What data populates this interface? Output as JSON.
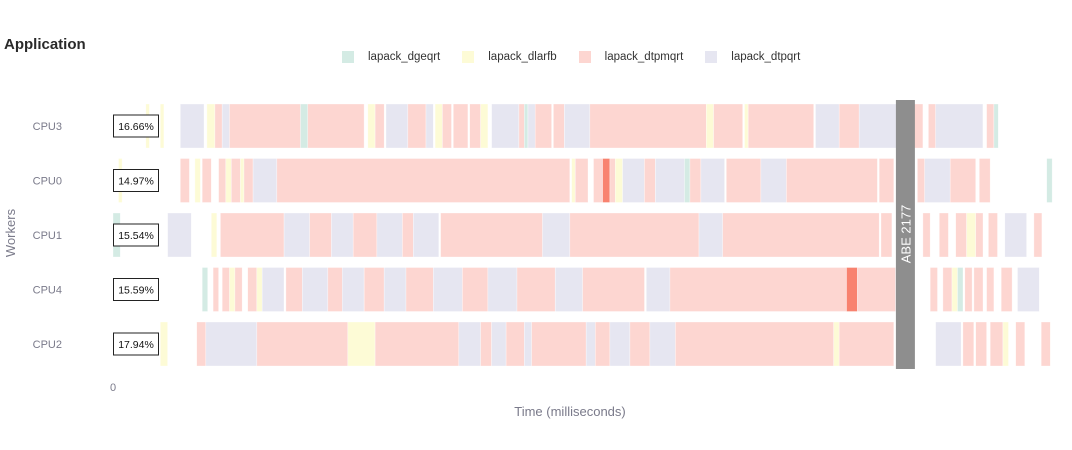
{
  "title": "Application",
  "colors": {
    "lapack_dgeqrt": "#d4ebe4",
    "lapack_dlarfb": "#fdfbd6",
    "lapack_dtpmqrt": "#fdd6d1",
    "lapack_dtpqrt": "#e6e6f1",
    "highlight": "#f8826f",
    "marker": "#8e8e8e"
  },
  "legend": [
    {
      "key": "lapack_dgeqrt",
      "label": "lapack_dgeqrt"
    },
    {
      "key": "lapack_dlarfb",
      "label": "lapack_dlarfb"
    },
    {
      "key": "lapack_dtpmqrt",
      "label": "lapack_dtpmqrt"
    },
    {
      "key": "lapack_dtpqrt",
      "label": "lapack_dtpqrt"
    }
  ],
  "chart_data": {
    "type": "gantt",
    "title": "Application",
    "xlabel": "Time (milliseconds)",
    "ylabel": "Workers",
    "x_tick_labels": [
      "0"
    ],
    "xlim": [
      0,
      2500
    ],
    "marker": {
      "label": "ABE 2177",
      "x": 2177
    },
    "workers": [
      {
        "name": "CPU3",
        "utilization": "16.66%",
        "tasks": [
          {
            "type": "lapack_dlarfb",
            "start": 90,
            "end": 100
          },
          {
            "type": "lapack_dlarfb",
            "start": 130,
            "end": 140
          },
          {
            "type": "lapack_dtpqrt",
            "start": 185,
            "end": 250
          },
          {
            "type": "lapack_dlarfb",
            "start": 258,
            "end": 280
          },
          {
            "type": "lapack_dtpmqrt",
            "start": 280,
            "end": 300
          },
          {
            "type": "lapack_dtpqrt",
            "start": 300,
            "end": 320
          },
          {
            "type": "lapack_dtpmqrt",
            "start": 320,
            "end": 515
          },
          {
            "type": "lapack_dgeqrt",
            "start": 515,
            "end": 535
          },
          {
            "type": "lapack_dtpmqrt",
            "start": 535,
            "end": 690
          },
          {
            "type": "lapack_dlarfb",
            "start": 700,
            "end": 720
          },
          {
            "type": "lapack_dtpmqrt",
            "start": 720,
            "end": 745
          },
          {
            "type": "lapack_dtpqrt",
            "start": 750,
            "end": 810
          },
          {
            "type": "lapack_dtpmqrt",
            "start": 810,
            "end": 860
          },
          {
            "type": "lapack_dtpqrt",
            "start": 860,
            "end": 880
          },
          {
            "type": "lapack_dlarfb",
            "start": 885,
            "end": 905
          },
          {
            "type": "lapack_dtpmqrt",
            "start": 905,
            "end": 930
          },
          {
            "type": "lapack_dtpmqrt",
            "start": 935,
            "end": 975
          },
          {
            "type": "lapack_dtpmqrt",
            "start": 980,
            "end": 1010
          },
          {
            "type": "lapack_dlarfb",
            "start": 1010,
            "end": 1030
          },
          {
            "type": "lapack_dtpqrt",
            "start": 1040,
            "end": 1115
          },
          {
            "type": "lapack_dtpmqrt",
            "start": 1115,
            "end": 1130
          },
          {
            "type": "lapack_dgeqrt",
            "start": 1130,
            "end": 1140
          },
          {
            "type": "lapack_dtpqrt",
            "start": 1140,
            "end": 1160
          },
          {
            "type": "lapack_dtpmqrt",
            "start": 1160,
            "end": 1205
          },
          {
            "type": "lapack_dtpmqrt",
            "start": 1210,
            "end": 1240
          },
          {
            "type": "lapack_dtpqrt",
            "start": 1240,
            "end": 1310
          },
          {
            "type": "lapack_dtpmqrt",
            "start": 1310,
            "end": 1630
          },
          {
            "type": "lapack_dlarfb",
            "start": 1630,
            "end": 1650
          },
          {
            "type": "lapack_dtpmqrt",
            "start": 1650,
            "end": 1730
          },
          {
            "type": "lapack_dlarfb",
            "start": 1735,
            "end": 1745
          },
          {
            "type": "lapack_dtpmqrt",
            "start": 1745,
            "end": 1925
          },
          {
            "type": "lapack_dtpqrt",
            "start": 1930,
            "end": 1995
          },
          {
            "type": "lapack_dtpmqrt",
            "start": 1995,
            "end": 2050
          },
          {
            "type": "lapack_dtpqrt",
            "start": 2050,
            "end": 2160
          },
          {
            "type": "lapack_dtpmqrt",
            "start": 2200,
            "end": 2225
          },
          {
            "type": "lapack_dtpmqrt",
            "start": 2240,
            "end": 2260
          },
          {
            "type": "lapack_dtpqrt",
            "start": 2260,
            "end": 2390
          },
          {
            "type": "lapack_dtpmqrt",
            "start": 2400,
            "end": 2420
          },
          {
            "type": "lapack_dgeqrt",
            "start": 2420,
            "end": 2432
          }
        ]
      },
      {
        "name": "CPU0",
        "utilization": "14.97%",
        "tasks": [
          {
            "type": "lapack_dlarfb",
            "start": 15,
            "end": 25
          },
          {
            "type": "lapack_dtpmqrt",
            "start": 185,
            "end": 210
          },
          {
            "type": "lapack_dlarfb",
            "start": 225,
            "end": 240
          },
          {
            "type": "lapack_dtpmqrt",
            "start": 245,
            "end": 270
          },
          {
            "type": "lapack_dtpmqrt",
            "start": 290,
            "end": 310
          },
          {
            "type": "lapack_dlarfb",
            "start": 310,
            "end": 325
          },
          {
            "type": "lapack_dtpmqrt",
            "start": 325,
            "end": 350
          },
          {
            "type": "lapack_dlarfb",
            "start": 350,
            "end": 360
          },
          {
            "type": "lapack_dtpmqrt",
            "start": 360,
            "end": 385
          },
          {
            "type": "lapack_dtpqrt",
            "start": 385,
            "end": 450
          },
          {
            "type": "lapack_dtpmqrt",
            "start": 450,
            "end": 1255
          },
          {
            "type": "lapack_dlarfb",
            "start": 1260,
            "end": 1270
          },
          {
            "type": "lapack_dtpmqrt",
            "start": 1270,
            "end": 1305
          },
          {
            "type": "lapack_dtpmqrt",
            "start": 1320,
            "end": 1345
          },
          {
            "type": "lapack_dtpmqrt",
            "start": 1345,
            "end": 1365,
            "highlight": true
          },
          {
            "type": "lapack_dtpmqrt",
            "start": 1365,
            "end": 1380
          },
          {
            "type": "lapack_dlarfb",
            "start": 1380,
            "end": 1400
          },
          {
            "type": "lapack_dtpqrt",
            "start": 1400,
            "end": 1460
          },
          {
            "type": "lapack_dtpmqrt",
            "start": 1460,
            "end": 1490
          },
          {
            "type": "lapack_dtpqrt",
            "start": 1490,
            "end": 1570
          },
          {
            "type": "lapack_dgeqrt",
            "start": 1570,
            "end": 1585
          },
          {
            "type": "lapack_dtpmqrt",
            "start": 1585,
            "end": 1615
          },
          {
            "type": "lapack_dtpqrt",
            "start": 1615,
            "end": 1680
          },
          {
            "type": "lapack_dtpmqrt",
            "start": 1685,
            "end": 1780
          },
          {
            "type": "lapack_dtpqrt",
            "start": 1780,
            "end": 1850
          },
          {
            "type": "lapack_dtpmqrt",
            "start": 1850,
            "end": 2100
          },
          {
            "type": "lapack_dtpmqrt",
            "start": 2105,
            "end": 2145
          },
          {
            "type": "lapack_dtpmqrt",
            "start": 2210,
            "end": 2230
          },
          {
            "type": "lapack_dtpqrt",
            "start": 2230,
            "end": 2300
          },
          {
            "type": "lapack_dtpmqrt",
            "start": 2300,
            "end": 2370
          },
          {
            "type": "lapack_dtpmqrt",
            "start": 2380,
            "end": 2410
          },
          {
            "type": "lapack_dgeqrt",
            "start": 2565,
            "end": 2580
          }
        ]
      },
      {
        "name": "CPU1",
        "utilization": "15.54%",
        "tasks": [
          {
            "type": "lapack_dgeqrt",
            "start": 0,
            "end": 20
          },
          {
            "type": "lapack_dtpqrt",
            "start": 150,
            "end": 215
          },
          {
            "type": "lapack_dlarfb",
            "start": 270,
            "end": 285
          },
          {
            "type": "lapack_dtpmqrt",
            "start": 295,
            "end": 470
          },
          {
            "type": "lapack_dtpqrt",
            "start": 470,
            "end": 540
          },
          {
            "type": "lapack_dtpmqrt",
            "start": 540,
            "end": 600
          },
          {
            "type": "lapack_dtpqrt",
            "start": 600,
            "end": 660
          },
          {
            "type": "lapack_dtpmqrt",
            "start": 660,
            "end": 725
          },
          {
            "type": "lapack_dtpqrt",
            "start": 725,
            "end": 795
          },
          {
            "type": "lapack_dtpmqrt",
            "start": 795,
            "end": 825
          },
          {
            "type": "lapack_dtpqrt",
            "start": 825,
            "end": 895
          },
          {
            "type": "lapack_dtpmqrt",
            "start": 900,
            "end": 1180
          },
          {
            "type": "lapack_dtpqrt",
            "start": 1180,
            "end": 1255
          },
          {
            "type": "lapack_dtpmqrt",
            "start": 1255,
            "end": 1610
          },
          {
            "type": "lapack_dtpqrt",
            "start": 1610,
            "end": 1675
          },
          {
            "type": "lapack_dtpmqrt",
            "start": 1675,
            "end": 2105
          },
          {
            "type": "lapack_dtpmqrt",
            "start": 2110,
            "end": 2140
          },
          {
            "type": "lapack_dtpmqrt",
            "start": 2225,
            "end": 2245
          },
          {
            "type": "lapack_dtpmqrt",
            "start": 2270,
            "end": 2295
          },
          {
            "type": "lapack_dtpmqrt",
            "start": 2315,
            "end": 2345
          },
          {
            "type": "lapack_dlarfb",
            "start": 2345,
            "end": 2370
          },
          {
            "type": "lapack_dtpmqrt",
            "start": 2370,
            "end": 2390
          },
          {
            "type": "lapack_dtpmqrt",
            "start": 2405,
            "end": 2430
          },
          {
            "type": "lapack_dtpqrt",
            "start": 2450,
            "end": 2510
          },
          {
            "type": "lapack_dtpmqrt",
            "start": 2530,
            "end": 2552
          }
        ]
      },
      {
        "name": "CPU4",
        "utilization": "15.59%",
        "tasks": [
          {
            "type": "lapack_dgeqrt",
            "start": 245,
            "end": 260
          },
          {
            "type": "lapack_dtpmqrt",
            "start": 275,
            "end": 290
          },
          {
            "type": "lapack_dtpmqrt",
            "start": 300,
            "end": 320
          },
          {
            "type": "lapack_dlarfb",
            "start": 320,
            "end": 335
          },
          {
            "type": "lapack_dtpmqrt",
            "start": 335,
            "end": 355
          },
          {
            "type": "lapack_dtpmqrt",
            "start": 370,
            "end": 395
          },
          {
            "type": "lapack_dlarfb",
            "start": 395,
            "end": 410
          },
          {
            "type": "lapack_dtpqrt",
            "start": 410,
            "end": 470
          },
          {
            "type": "lapack_dtpmqrt",
            "start": 475,
            "end": 520
          },
          {
            "type": "lapack_dtpqrt",
            "start": 520,
            "end": 590
          },
          {
            "type": "lapack_dtpmqrt",
            "start": 590,
            "end": 630
          },
          {
            "type": "lapack_dtpqrt",
            "start": 630,
            "end": 690
          },
          {
            "type": "lapack_dtpmqrt",
            "start": 690,
            "end": 745
          },
          {
            "type": "lapack_dtpqrt",
            "start": 745,
            "end": 805
          },
          {
            "type": "lapack_dtpmqrt",
            "start": 805,
            "end": 880
          },
          {
            "type": "lapack_dtpqrt",
            "start": 880,
            "end": 960
          },
          {
            "type": "lapack_dtpmqrt",
            "start": 960,
            "end": 1030
          },
          {
            "type": "lapack_dtpqrt",
            "start": 1030,
            "end": 1110
          },
          {
            "type": "lapack_dtpmqrt",
            "start": 1110,
            "end": 1215
          },
          {
            "type": "lapack_dtpqrt",
            "start": 1215,
            "end": 1290
          },
          {
            "type": "lapack_dtpmqrt",
            "start": 1290,
            "end": 1460
          },
          {
            "type": "lapack_dtpqrt",
            "start": 1465,
            "end": 1530
          },
          {
            "type": "lapack_dtpmqrt",
            "start": 1530,
            "end": 2015
          },
          {
            "type": "lapack_dtpmqrt",
            "start": 2015,
            "end": 2045,
            "highlight": true
          },
          {
            "type": "lapack_dtpmqrt",
            "start": 2045,
            "end": 2150
          },
          {
            "type": "lapack_dtpqrt",
            "start": 2150,
            "end": 2190
          },
          {
            "type": "lapack_dtpmqrt",
            "start": 2245,
            "end": 2265
          },
          {
            "type": "lapack_dtpmqrt",
            "start": 2280,
            "end": 2305
          },
          {
            "type": "lapack_dlarfb",
            "start": 2305,
            "end": 2320
          },
          {
            "type": "lapack_dgeqrt",
            "start": 2320,
            "end": 2335
          },
          {
            "type": "lapack_dtpmqrt",
            "start": 2340,
            "end": 2360
          },
          {
            "type": "lapack_dtpmqrt",
            "start": 2365,
            "end": 2390
          },
          {
            "type": "lapack_dtpmqrt",
            "start": 2400,
            "end": 2420
          },
          {
            "type": "lapack_dtpmqrt",
            "start": 2440,
            "end": 2470
          },
          {
            "type": "lapack_dtpqrt",
            "start": 2485,
            "end": 2545
          }
        ]
      },
      {
        "name": "CPU2",
        "utilization": "17.94%",
        "tasks": [
          {
            "type": "lapack_dlarfb",
            "start": 130,
            "end": 150
          },
          {
            "type": "lapack_dtpmqrt",
            "start": 230,
            "end": 255
          },
          {
            "type": "lapack_dtpqrt",
            "start": 255,
            "end": 395
          },
          {
            "type": "lapack_dtpmqrt",
            "start": 395,
            "end": 645
          },
          {
            "type": "lapack_dlarfb",
            "start": 645,
            "end": 720
          },
          {
            "type": "lapack_dtpmqrt",
            "start": 720,
            "end": 950
          },
          {
            "type": "lapack_dtpqrt",
            "start": 950,
            "end": 1010
          },
          {
            "type": "lapack_dtpmqrt",
            "start": 1010,
            "end": 1040
          },
          {
            "type": "lapack_dtpqrt",
            "start": 1040,
            "end": 1080
          },
          {
            "type": "lapack_dtpmqrt",
            "start": 1080,
            "end": 1130
          },
          {
            "type": "lapack_dtpqrt",
            "start": 1130,
            "end": 1150
          },
          {
            "type": "lapack_dtpmqrt",
            "start": 1150,
            "end": 1300
          },
          {
            "type": "lapack_dtpqrt",
            "start": 1300,
            "end": 1325
          },
          {
            "type": "lapack_dtpmqrt",
            "start": 1325,
            "end": 1365
          },
          {
            "type": "lapack_dtpqrt",
            "start": 1365,
            "end": 1420
          },
          {
            "type": "lapack_dtpmqrt",
            "start": 1420,
            "end": 1475
          },
          {
            "type": "lapack_dtpqrt",
            "start": 1475,
            "end": 1545
          },
          {
            "type": "lapack_dtpmqrt",
            "start": 1545,
            "end": 1980
          },
          {
            "type": "lapack_dlarfb",
            "start": 1980,
            "end": 1995
          },
          {
            "type": "lapack_dtpmqrt",
            "start": 1995,
            "end": 2145
          },
          {
            "type": "lapack_dtpqrt",
            "start": 2260,
            "end": 2330
          },
          {
            "type": "lapack_dtpmqrt",
            "start": 2335,
            "end": 2365
          },
          {
            "type": "lapack_dtpmqrt",
            "start": 2370,
            "end": 2400
          },
          {
            "type": "lapack_dtpmqrt",
            "start": 2410,
            "end": 2445
          },
          {
            "type": "lapack_dlarfb",
            "start": 2445,
            "end": 2460
          },
          {
            "type": "lapack_dtpmqrt",
            "start": 2480,
            "end": 2505
          },
          {
            "type": "lapack_dtpmqrt",
            "start": 2550,
            "end": 2575
          }
        ]
      }
    ]
  }
}
